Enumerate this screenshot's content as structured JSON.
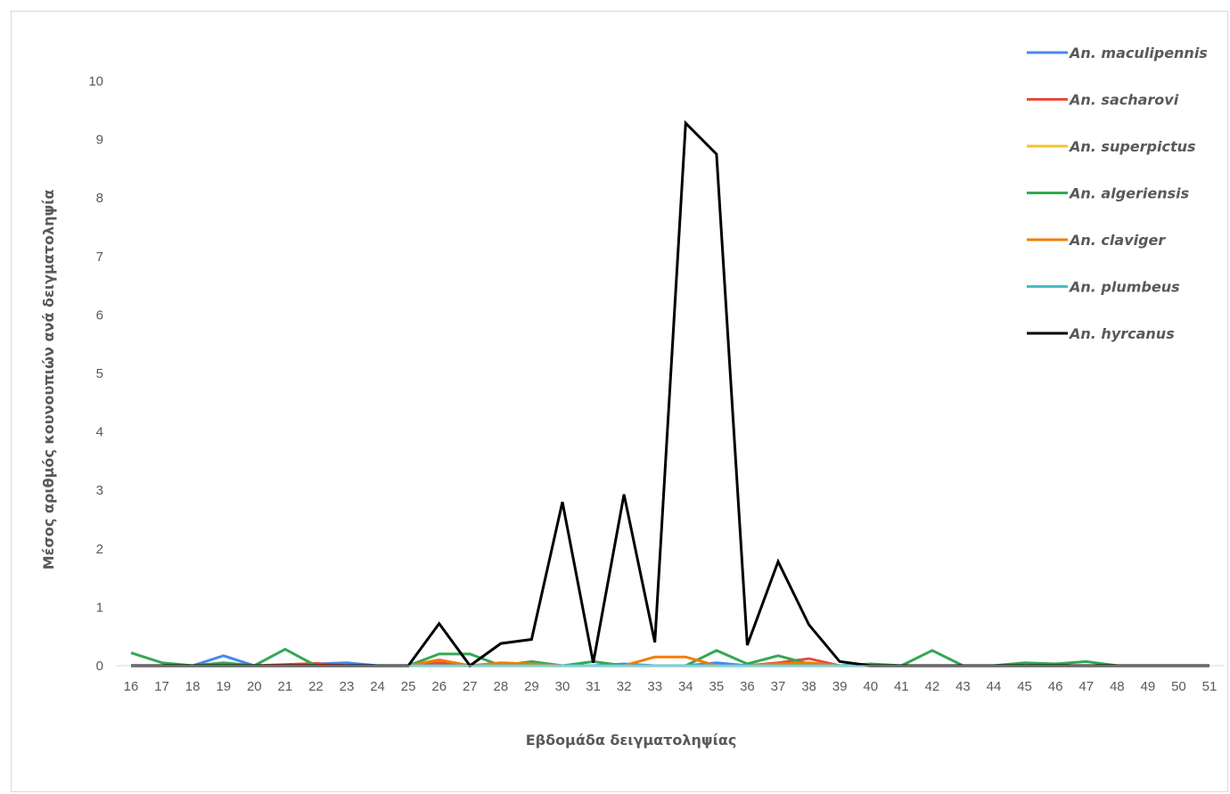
{
  "chart_data": {
    "type": "line",
    "title": "",
    "xlabel": "Εβδομάδα δειγματοληψίας",
    "ylabel": "Μέσος αριθμός κουνουπιών ανά δειγματοληψία",
    "ylim": [
      0,
      10
    ],
    "yticks": [
      "0",
      "1",
      "2",
      "3",
      "4",
      "5",
      "6",
      "7",
      "8",
      "9",
      "10"
    ],
    "grid": false,
    "legend_position": "top-right",
    "x": [
      "16",
      "17",
      "18",
      "19",
      "20",
      "21",
      "22",
      "23",
      "24",
      "25",
      "26",
      "27",
      "28",
      "29",
      "30",
      "31",
      "32",
      "33",
      "34",
      "35",
      "36",
      "37",
      "38",
      "39",
      "40",
      "41",
      "42",
      "43",
      "44",
      "45",
      "46",
      "47",
      "48",
      "49",
      "50",
      "51"
    ],
    "series": [
      {
        "name": "An. maculipennis",
        "color": "#4a86e8",
        "values": [
          0,
          0,
          0,
          0.17,
          0,
          0,
          0.03,
          0.05,
          0,
          0,
          0.05,
          0,
          0,
          0,
          0,
          0,
          0.03,
          0,
          0,
          0.05,
          0,
          0,
          0,
          0,
          0,
          0,
          0,
          0,
          0,
          0,
          0,
          0,
          0,
          0,
          0,
          0
        ]
      },
      {
        "name": "An. sacharovi",
        "color": "#e74c3c",
        "values": [
          0,
          0,
          0,
          0,
          0,
          0.02,
          0.04,
          0,
          0,
          0,
          0.05,
          0,
          0,
          0,
          0,
          0,
          0,
          0,
          0,
          0,
          0,
          0.05,
          0.12,
          0,
          0,
          0,
          0,
          0,
          0,
          0,
          0,
          0,
          0,
          0,
          0,
          0
        ]
      },
      {
        "name": "An. superpictus",
        "color": "#f1c232",
        "values": [
          0,
          0,
          0,
          0,
          0,
          0,
          0,
          0,
          0,
          0,
          0,
          0,
          0,
          0,
          0,
          0,
          0,
          0,
          0,
          0,
          0,
          0,
          0,
          0,
          0,
          0,
          0,
          0,
          0,
          0,
          0,
          0,
          0,
          0,
          0,
          0
        ]
      },
      {
        "name": "An. algeriensis",
        "color": "#34a853",
        "values": [
          0.22,
          0.05,
          0,
          0.05,
          0,
          0.28,
          0,
          0,
          0,
          0,
          0.2,
          0.2,
          0,
          0.07,
          0,
          0.07,
          0,
          0,
          0,
          0.26,
          0.03,
          0.17,
          0.03,
          0,
          0.03,
          0,
          0.26,
          0,
          0,
          0.05,
          0.03,
          0.07,
          0,
          0,
          0,
          0
        ]
      },
      {
        "name": "An. claviger",
        "color": "#f57c00",
        "values": [
          0,
          0,
          0,
          0,
          0,
          0,
          0,
          0,
          0,
          0,
          0.1,
          0,
          0.05,
          0.03,
          0,
          0,
          0,
          0.15,
          0.15,
          0,
          0,
          0.03,
          0.05,
          0,
          0,
          0,
          0,
          0,
          0,
          0,
          0,
          0,
          0,
          0,
          0,
          0
        ]
      },
      {
        "name": "An. plumbeus",
        "color": "#46bdc6",
        "values": [
          0,
          0,
          0,
          0,
          0,
          0,
          0,
          0,
          0,
          0,
          0,
          0,
          0,
          0,
          0,
          0,
          0,
          0,
          0,
          0,
          0,
          0,
          0,
          0,
          0,
          0,
          0,
          0,
          0,
          0,
          0,
          0,
          0,
          0,
          0,
          0
        ]
      },
      {
        "name": "An. hyrcanus",
        "color": "#000000",
        "values": [
          0,
          0,
          0,
          0,
          0,
          0,
          0,
          0,
          0,
          0,
          0.72,
          0,
          0.38,
          0.45,
          2.8,
          0.05,
          2.93,
          0.4,
          9.28,
          8.75,
          0.35,
          1.78,
          0.7,
          0.07,
          0,
          0,
          0,
          0,
          0,
          0,
          0,
          0,
          0,
          0,
          0,
          0
        ]
      }
    ]
  }
}
